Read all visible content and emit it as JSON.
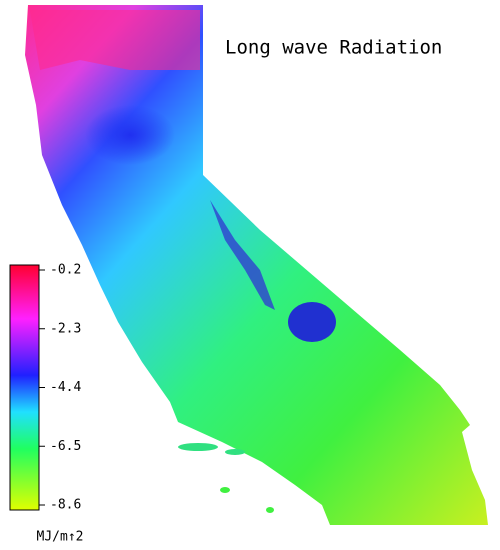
{
  "title": "Long wave Radiation",
  "colorbar": {
    "ticks": [
      -0.2,
      -2.3,
      -4.4,
      -6.5,
      -8.6
    ],
    "unit": "MJ/m↑2"
  }
}
